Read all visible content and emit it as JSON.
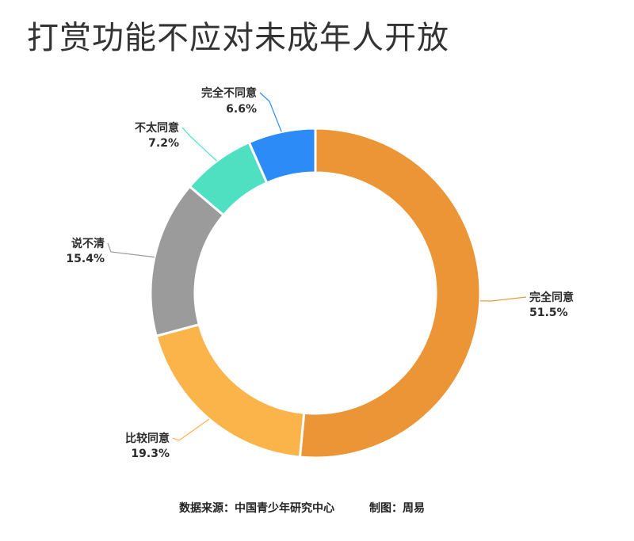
{
  "chart_data": {
    "type": "pie",
    "title": "打赏功能不应对未成年人开放",
    "slices": [
      {
        "label": "完全同意",
        "value": 51.5,
        "value_text": "51.5%",
        "color": "#EB9537"
      },
      {
        "label": "比较同意",
        "value": 19.3,
        "value_text": "19.3%",
        "color": "#FBB449"
      },
      {
        "label": "说不清",
        "value": 15.4,
        "value_text": "15.4%",
        "color": "#9B9B9B"
      },
      {
        "label": "不太同意",
        "value": 7.2,
        "value_text": "7.2%",
        "color": "#4FE0C2"
      },
      {
        "label": "完全不同意",
        "value": 6.6,
        "value_text": "6.6%",
        "color": "#2C8BF7"
      }
    ],
    "legend": "none"
  },
  "footer": {
    "source": "数据来源：中国青少年研究中心",
    "credit": "制图：周易"
  }
}
